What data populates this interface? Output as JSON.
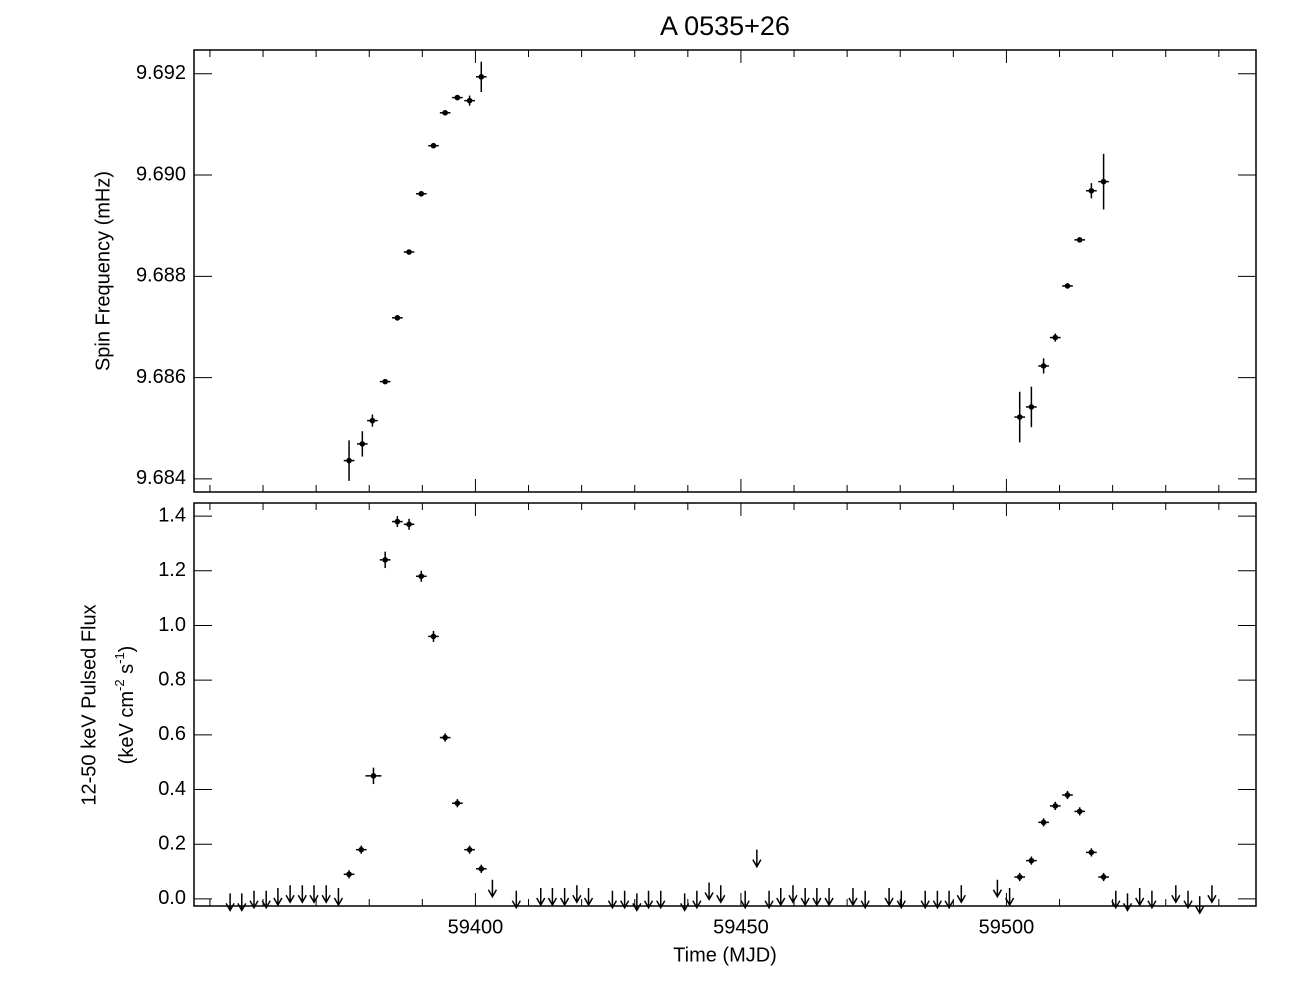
{
  "chart_data": [
    {
      "type": "scatter",
      "title": "A 0535+26",
      "ylabel": "Spin Frequency (mHz)",
      "x": [
        59376.2,
        59378.7,
        59380.6,
        59383.0,
        59385.3,
        59387.5,
        59389.8,
        59392.1,
        59394.3,
        59396.6,
        59398.9,
        59401.1,
        59502.5,
        59504.7,
        59507.0,
        59509.2,
        59511.5,
        59513.8,
        59516.0,
        59518.3
      ],
      "xerr": [
        1,
        1,
        1,
        1,
        1,
        1,
        1,
        1,
        1,
        1,
        1,
        1,
        1,
        1,
        1,
        1,
        1,
        1,
        1,
        1
      ],
      "values": [
        9.68436,
        9.68469,
        9.68515,
        9.68592,
        9.68718,
        9.68848,
        9.68963,
        9.69058,
        9.69123,
        9.69153,
        9.69147,
        9.69194,
        9.68522,
        9.68542,
        9.68623,
        9.68679,
        9.68781,
        9.68872,
        9.68969,
        9.68987
      ],
      "yerr": [
        0.0004,
        0.00025,
        0.00012,
        3e-05,
        3e-05,
        3e-05,
        3e-05,
        3e-05,
        3e-05,
        3e-05,
        0.0001,
        0.0003,
        0.0005,
        0.0004,
        0.00015,
        8e-05,
        3e-05,
        5e-05,
        0.00015,
        0.00055
      ],
      "color": "#000000",
      "xlim": [
        59347,
        59547
      ],
      "xticks": [
        59400,
        59450,
        59500
      ],
      "xtick_labels": false,
      "xminorticks": [
        59350,
        59360,
        59370,
        59380,
        59390,
        59410,
        59420,
        59430,
        59440,
        59460,
        59470,
        59480,
        59490,
        59510,
        59520,
        59530,
        59540
      ],
      "ylim": [
        9.68374,
        9.69247
      ],
      "yticks": [
        {
          "value": 9.684,
          "label": "9.684"
        },
        {
          "value": 9.686,
          "label": "9.686"
        },
        {
          "value": 9.688,
          "label": "9.688"
        },
        {
          "value": 9.69,
          "label": "9.690"
        },
        {
          "value": 9.692,
          "label": "9.692"
        }
      ]
    },
    {
      "type": "scatter",
      "xlabel": "Time (MJD)",
      "ylabel": "12-50 keV Pulsed Flux",
      "ylabel_units": [
        "(keV cm",
        "-2",
        " s",
        "-1",
        ")"
      ],
      "x": [
        59376.2,
        59378.5,
        59380.8,
        59383.0,
        59385.3,
        59387.5,
        59389.8,
        59392.1,
        59394.3,
        59396.6,
        59398.9,
        59401.1,
        59502.5,
        59504.7,
        59507.0,
        59509.2,
        59511.5,
        59513.8,
        59516.0,
        59518.3
      ],
      "xerr": [
        1,
        1,
        1.5,
        1,
        1,
        1,
        1,
        1,
        1,
        1,
        1,
        1,
        1,
        1,
        1,
        1,
        1,
        1,
        1,
        1
      ],
      "values": [
        0.09,
        0.18,
        0.45,
        1.24,
        1.38,
        1.37,
        1.18,
        0.96,
        0.59,
        0.35,
        0.18,
        0.11,
        0.08,
        0.14,
        0.28,
        0.34,
        0.38,
        0.32,
        0.17,
        0.08
      ],
      "yerr": [
        0.015,
        0.015,
        0.03,
        0.03,
        0.02,
        0.02,
        0.02,
        0.02,
        0.015,
        0.015,
        0.015,
        0.015,
        0.015,
        0.015,
        0.015,
        0.015,
        0.015,
        0.015,
        0.015,
        0.015
      ],
      "upper_limits": {
        "x": [
          59353.8,
          59356.0,
          59358.3,
          59360.6,
          59362.8,
          59365.1,
          59367.4,
          59369.6,
          59371.9,
          59374.2,
          59403.2,
          59407.7,
          59412.3,
          59414.5,
          59416.8,
          59419.1,
          59421.3,
          59425.8,
          59428.1,
          59430.4,
          59432.6,
          59434.9,
          59439.4,
          59441.7,
          59444.0,
          59446.2,
          59450.8,
          59453.0,
          59455.3,
          59457.5,
          59459.8,
          59462.1,
          59464.3,
          59466.6,
          59471.1,
          59473.4,
          59477.9,
          59480.2,
          59484.7,
          59487.0,
          59489.2,
          59491.5,
          59498.3,
          59500.6,
          59520.6,
          59522.8,
          59525.1,
          59527.4,
          59531.9,
          59534.2,
          59536.4,
          59538.7
        ],
        "values": [
          0.02,
          0.02,
          0.03,
          0.03,
          0.04,
          0.05,
          0.05,
          0.05,
          0.05,
          0.04,
          0.07,
          0.03,
          0.04,
          0.04,
          0.04,
          0.05,
          0.04,
          0.03,
          0.03,
          0.02,
          0.03,
          0.03,
          0.02,
          0.03,
          0.06,
          0.05,
          0.03,
          0.18,
          0.03,
          0.04,
          0.05,
          0.04,
          0.04,
          0.04,
          0.04,
          0.03,
          0.04,
          0.03,
          0.03,
          0.03,
          0.03,
          0.05,
          0.07,
          0.04,
          0.03,
          0.02,
          0.04,
          0.03,
          0.05,
          0.03,
          0.01,
          0.05
        ]
      },
      "color": "#000000",
      "xlim": [
        59347,
        59547
      ],
      "xticks": [
        59400,
        59450,
        59500
      ],
      "xtick_labels": true,
      "xminorticks": [
        59350,
        59360,
        59370,
        59380,
        59390,
        59410,
        59420,
        59430,
        59440,
        59460,
        59470,
        59480,
        59490,
        59510,
        59520,
        59530,
        59540
      ],
      "ylim": [
        -0.026,
        1.448
      ],
      "yticks": [
        {
          "value": 0,
          "label": "0.0"
        },
        0.2,
        0.4,
        0.6,
        0.8,
        {
          "value": 1,
          "label": "1.0"
        },
        1.2,
        1.4
      ]
    }
  ]
}
